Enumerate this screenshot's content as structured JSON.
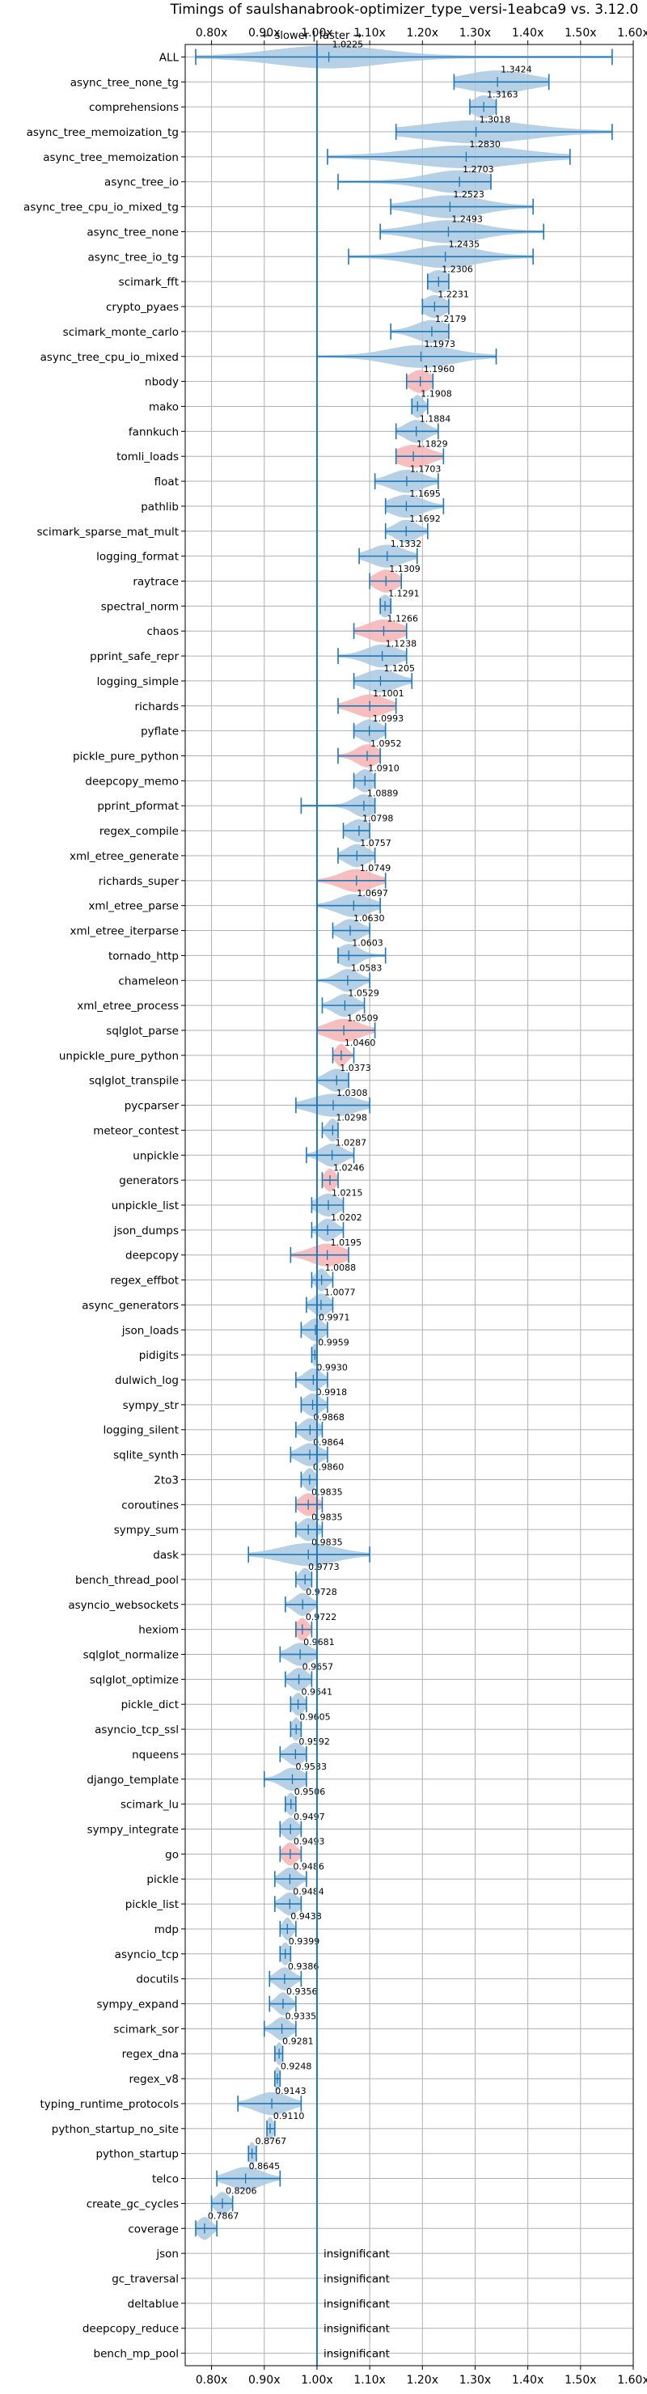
{
  "chart_data": {
    "type": "violin",
    "title": "Timings of saulshanabrook-optimizer_type_versi-1eabca9 vs. 3.12.0",
    "subtitle": "← slower | faster →",
    "xlim": [
      0.75,
      1.6
    ],
    "xticks": [
      "0.80x",
      "0.90x",
      "1.00x",
      "1.10x",
      "1.20x",
      "1.30x",
      "1.40x",
      "1.50x",
      "1.60x"
    ],
    "grid": true,
    "insignificant_label": "insignificant",
    "colors": {
      "faster": "#a9c8e2",
      "slower": "#f6b3b5",
      "line": "#1f77b4",
      "ref": "#1f77b4"
    },
    "benchmarks": [
      {
        "name": "ALL",
        "value": 1.0225,
        "min": 0.77,
        "max": 1.56,
        "spread": 0.1,
        "color": "blue"
      },
      {
        "name": "async_tree_none_tg",
        "value": 1.3424,
        "min": 1.26,
        "max": 1.44,
        "spread": 0.06,
        "color": "blue"
      },
      {
        "name": "comprehensions",
        "value": 1.3163,
        "min": 1.29,
        "max": 1.34,
        "spread": 0.02,
        "color": "blue"
      },
      {
        "name": "async_tree_memoization_tg",
        "value": 1.3018,
        "min": 1.15,
        "max": 1.56,
        "spread": 0.1,
        "color": "blue"
      },
      {
        "name": "async_tree_memoization",
        "value": 1.283,
        "min": 1.02,
        "max": 1.48,
        "spread": 0.1,
        "color": "blue"
      },
      {
        "name": "async_tree_io",
        "value": 1.2703,
        "min": 1.04,
        "max": 1.33,
        "spread": 0.06,
        "color": "blue"
      },
      {
        "name": "async_tree_cpu_io_mixed_tg",
        "value": 1.2523,
        "min": 1.14,
        "max": 1.41,
        "spread": 0.06,
        "color": "blue"
      },
      {
        "name": "async_tree_none",
        "value": 1.2493,
        "min": 1.12,
        "max": 1.43,
        "spread": 0.06,
        "color": "blue"
      },
      {
        "name": "async_tree_io_tg",
        "value": 1.2435,
        "min": 1.06,
        "max": 1.41,
        "spread": 0.06,
        "color": "blue"
      },
      {
        "name": "scimark_fft",
        "value": 1.2306,
        "min": 1.21,
        "max": 1.25,
        "spread": 0.02,
        "color": "blue"
      },
      {
        "name": "crypto_pyaes",
        "value": 1.2231,
        "min": 1.2,
        "max": 1.25,
        "spread": 0.02,
        "color": "blue"
      },
      {
        "name": "scimark_monte_carlo",
        "value": 1.2179,
        "min": 1.14,
        "max": 1.25,
        "spread": 0.03,
        "color": "blue"
      },
      {
        "name": "async_tree_cpu_io_mixed",
        "value": 1.1973,
        "min": 1.0,
        "max": 1.34,
        "spread": 0.06,
        "color": "blue"
      },
      {
        "name": "nbody",
        "value": 1.196,
        "min": 1.17,
        "max": 1.22,
        "spread": 0.02,
        "color": "pink"
      },
      {
        "name": "mako",
        "value": 1.1908,
        "min": 1.18,
        "max": 1.21,
        "spread": 0.01,
        "color": "blue"
      },
      {
        "name": "fannkuch",
        "value": 1.1884,
        "min": 1.15,
        "max": 1.23,
        "spread": 0.02,
        "color": "blue"
      },
      {
        "name": "tomli_loads",
        "value": 1.1829,
        "min": 1.15,
        "max": 1.24,
        "spread": 0.03,
        "color": "pink"
      },
      {
        "name": "float",
        "value": 1.1703,
        "min": 1.11,
        "max": 1.23,
        "spread": 0.03,
        "color": "blue"
      },
      {
        "name": "pathlib",
        "value": 1.1695,
        "min": 1.13,
        "max": 1.24,
        "spread": 0.03,
        "color": "blue"
      },
      {
        "name": "scimark_sparse_mat_mult",
        "value": 1.1692,
        "min": 1.13,
        "max": 1.21,
        "spread": 0.02,
        "color": "blue"
      },
      {
        "name": "logging_format",
        "value": 1.1332,
        "min": 1.08,
        "max": 1.19,
        "spread": 0.03,
        "color": "blue"
      },
      {
        "name": "raytrace",
        "value": 1.1309,
        "min": 1.1,
        "max": 1.16,
        "spread": 0.02,
        "color": "pink"
      },
      {
        "name": "spectral_norm",
        "value": 1.1291,
        "min": 1.12,
        "max": 1.14,
        "spread": 0.01,
        "color": "blue"
      },
      {
        "name": "chaos",
        "value": 1.1266,
        "min": 1.07,
        "max": 1.17,
        "spread": 0.03,
        "color": "pink"
      },
      {
        "name": "pprint_safe_repr",
        "value": 1.1238,
        "min": 1.04,
        "max": 1.17,
        "spread": 0.03,
        "color": "blue"
      },
      {
        "name": "logging_simple",
        "value": 1.1205,
        "min": 1.07,
        "max": 1.18,
        "spread": 0.03,
        "color": "blue"
      },
      {
        "name": "richards",
        "value": 1.1001,
        "min": 1.04,
        "max": 1.15,
        "spread": 0.03,
        "color": "pink"
      },
      {
        "name": "pyflate",
        "value": 1.0993,
        "min": 1.07,
        "max": 1.13,
        "spread": 0.02,
        "color": "blue"
      },
      {
        "name": "pickle_pure_python",
        "value": 1.0952,
        "min": 1.04,
        "max": 1.12,
        "spread": 0.02,
        "color": "pink"
      },
      {
        "name": "deepcopy_memo",
        "value": 1.091,
        "min": 1.07,
        "max": 1.11,
        "spread": 0.015,
        "color": "blue"
      },
      {
        "name": "pprint_pformat",
        "value": 1.0889,
        "min": 0.97,
        "max": 1.11,
        "spread": 0.02,
        "color": "blue"
      },
      {
        "name": "regex_compile",
        "value": 1.0798,
        "min": 1.05,
        "max": 1.1,
        "spread": 0.02,
        "color": "blue"
      },
      {
        "name": "xml_etree_generate",
        "value": 1.0757,
        "min": 1.04,
        "max": 1.11,
        "spread": 0.02,
        "color": "blue"
      },
      {
        "name": "richards_super",
        "value": 1.0749,
        "min": 1.0,
        "max": 1.13,
        "spread": 0.03,
        "color": "pink"
      },
      {
        "name": "xml_etree_parse",
        "value": 1.0697,
        "min": 1.0,
        "max": 1.12,
        "spread": 0.03,
        "color": "blue"
      },
      {
        "name": "xml_etree_iterparse",
        "value": 1.063,
        "min": 1.03,
        "max": 1.1,
        "spread": 0.02,
        "color": "blue"
      },
      {
        "name": "tornado_http",
        "value": 1.0603,
        "min": 1.04,
        "max": 1.13,
        "spread": 0.02,
        "color": "blue"
      },
      {
        "name": "chameleon",
        "value": 1.0583,
        "min": 1.0,
        "max": 1.1,
        "spread": 0.02,
        "color": "blue"
      },
      {
        "name": "xml_etree_process",
        "value": 1.0529,
        "min": 1.01,
        "max": 1.09,
        "spread": 0.02,
        "color": "blue"
      },
      {
        "name": "sqlglot_parse",
        "value": 1.0509,
        "min": 1.0,
        "max": 1.11,
        "spread": 0.03,
        "color": "pink"
      },
      {
        "name": "unpickle_pure_python",
        "value": 1.046,
        "min": 1.03,
        "max": 1.07,
        "spread": 0.01,
        "color": "pink"
      },
      {
        "name": "sqlglot_transpile",
        "value": 1.0373,
        "min": 1.0,
        "max": 1.06,
        "spread": 0.02,
        "color": "blue"
      },
      {
        "name": "pycparser",
        "value": 1.0308,
        "min": 0.96,
        "max": 1.1,
        "spread": 0.04,
        "color": "blue"
      },
      {
        "name": "meteor_contest",
        "value": 1.0298,
        "min": 1.01,
        "max": 1.04,
        "spread": 0.01,
        "color": "blue"
      },
      {
        "name": "unpickle",
        "value": 1.0287,
        "min": 0.98,
        "max": 1.07,
        "spread": 0.02,
        "color": "blue"
      },
      {
        "name": "generators",
        "value": 1.0246,
        "min": 1.01,
        "max": 1.04,
        "spread": 0.01,
        "color": "pink"
      },
      {
        "name": "unpickle_list",
        "value": 1.0215,
        "min": 0.99,
        "max": 1.05,
        "spread": 0.02,
        "color": "blue"
      },
      {
        "name": "json_dumps",
        "value": 1.0202,
        "min": 0.99,
        "max": 1.05,
        "spread": 0.015,
        "color": "blue"
      },
      {
        "name": "deepcopy",
        "value": 1.0195,
        "min": 0.95,
        "max": 1.06,
        "spread": 0.03,
        "color": "pink"
      },
      {
        "name": "regex_effbot",
        "value": 1.0088,
        "min": 0.99,
        "max": 1.03,
        "spread": 0.01,
        "color": "blue"
      },
      {
        "name": "async_generators",
        "value": 1.0077,
        "min": 0.98,
        "max": 1.03,
        "spread": 0.015,
        "color": "blue"
      },
      {
        "name": "json_loads",
        "value": 0.9971,
        "min": 0.97,
        "max": 1.02,
        "spread": 0.015,
        "color": "blue"
      },
      {
        "name": "pidigits",
        "value": 0.9959,
        "min": 0.99,
        "max": 1.0,
        "spread": 0.005,
        "color": "blue"
      },
      {
        "name": "dulwich_log",
        "value": 0.993,
        "min": 0.96,
        "max": 1.02,
        "spread": 0.015,
        "color": "blue"
      },
      {
        "name": "sympy_str",
        "value": 0.9918,
        "min": 0.97,
        "max": 1.02,
        "spread": 0.015,
        "color": "blue"
      },
      {
        "name": "logging_silent",
        "value": 0.9868,
        "min": 0.96,
        "max": 1.01,
        "spread": 0.015,
        "color": "blue"
      },
      {
        "name": "sqlite_synth",
        "value": 0.9864,
        "min": 0.95,
        "max": 1.02,
        "spread": 0.02,
        "color": "blue"
      },
      {
        "name": "2to3",
        "value": 0.986,
        "min": 0.97,
        "max": 1.0,
        "spread": 0.01,
        "color": "blue"
      },
      {
        "name": "coroutines",
        "value": 0.9835,
        "min": 0.96,
        "max": 1.01,
        "spread": 0.015,
        "color": "pink"
      },
      {
        "name": "sympy_sum",
        "value": 0.9835,
        "min": 0.96,
        "max": 1.01,
        "spread": 0.015,
        "color": "blue"
      },
      {
        "name": "dask",
        "value": 0.9835,
        "min": 0.87,
        "max": 1.1,
        "spread": 0.05,
        "color": "blue"
      },
      {
        "name": "bench_thread_pool",
        "value": 0.9773,
        "min": 0.96,
        "max": 0.99,
        "spread": 0.01,
        "color": "blue"
      },
      {
        "name": "asyncio_websockets",
        "value": 0.9728,
        "min": 0.94,
        "max": 1.0,
        "spread": 0.015,
        "color": "blue"
      },
      {
        "name": "hexiom",
        "value": 0.9722,
        "min": 0.96,
        "max": 0.99,
        "spread": 0.01,
        "color": "pink"
      },
      {
        "name": "sqlglot_normalize",
        "value": 0.9681,
        "min": 0.93,
        "max": 1.0,
        "spread": 0.02,
        "color": "blue"
      },
      {
        "name": "sqlglot_optimize",
        "value": 0.9657,
        "min": 0.94,
        "max": 0.99,
        "spread": 0.015,
        "color": "blue"
      },
      {
        "name": "pickle_dict",
        "value": 0.9641,
        "min": 0.95,
        "max": 0.98,
        "spread": 0.01,
        "color": "blue"
      },
      {
        "name": "asyncio_tcp_ssl",
        "value": 0.9605,
        "min": 0.95,
        "max": 0.97,
        "spread": 0.008,
        "color": "blue"
      },
      {
        "name": "nqueens",
        "value": 0.9592,
        "min": 0.93,
        "max": 0.98,
        "spread": 0.015,
        "color": "blue"
      },
      {
        "name": "django_template",
        "value": 0.9533,
        "min": 0.9,
        "max": 0.98,
        "spread": 0.02,
        "color": "blue"
      },
      {
        "name": "scimark_lu",
        "value": 0.9506,
        "min": 0.94,
        "max": 0.96,
        "spread": 0.008,
        "color": "blue"
      },
      {
        "name": "sympy_integrate",
        "value": 0.9497,
        "min": 0.93,
        "max": 0.97,
        "spread": 0.012,
        "color": "blue"
      },
      {
        "name": "go",
        "value": 0.9493,
        "min": 0.93,
        "max": 0.97,
        "spread": 0.012,
        "color": "pink"
      },
      {
        "name": "pickle",
        "value": 0.9486,
        "min": 0.92,
        "max": 0.98,
        "spread": 0.015,
        "color": "blue"
      },
      {
        "name": "pickle_list",
        "value": 0.9484,
        "min": 0.92,
        "max": 0.97,
        "spread": 0.015,
        "color": "blue"
      },
      {
        "name": "mdp",
        "value": 0.9438,
        "min": 0.93,
        "max": 0.96,
        "spread": 0.008,
        "color": "blue"
      },
      {
        "name": "asyncio_tcp",
        "value": 0.9399,
        "min": 0.93,
        "max": 0.95,
        "spread": 0.008,
        "color": "blue"
      },
      {
        "name": "docutils",
        "value": 0.9386,
        "min": 0.91,
        "max": 0.97,
        "spread": 0.015,
        "color": "blue"
      },
      {
        "name": "sympy_expand",
        "value": 0.9356,
        "min": 0.91,
        "max": 0.96,
        "spread": 0.012,
        "color": "blue"
      },
      {
        "name": "scimark_sor",
        "value": 0.9335,
        "min": 0.9,
        "max": 0.96,
        "spread": 0.015,
        "color": "blue"
      },
      {
        "name": "regex_dna",
        "value": 0.9281,
        "min": 0.92,
        "max": 0.935,
        "spread": 0.006,
        "color": "blue"
      },
      {
        "name": "regex_v8",
        "value": 0.9248,
        "min": 0.92,
        "max": 0.93,
        "spread": 0.006,
        "color": "blue"
      },
      {
        "name": "typing_runtime_protocols",
        "value": 0.9143,
        "min": 0.85,
        "max": 0.97,
        "spread": 0.03,
        "color": "blue"
      },
      {
        "name": "python_startup_no_site",
        "value": 0.911,
        "min": 0.905,
        "max": 0.92,
        "spread": 0.006,
        "color": "blue"
      },
      {
        "name": "python_startup",
        "value": 0.8767,
        "min": 0.87,
        "max": 0.885,
        "spread": 0.006,
        "color": "blue"
      },
      {
        "name": "telco",
        "value": 0.8645,
        "min": 0.81,
        "max": 0.93,
        "spread": 0.03,
        "color": "blue"
      },
      {
        "name": "create_gc_cycles",
        "value": 0.8206,
        "min": 0.8,
        "max": 0.84,
        "spread": 0.012,
        "color": "blue"
      },
      {
        "name": "coverage",
        "value": 0.7867,
        "min": 0.77,
        "max": 0.81,
        "spread": 0.012,
        "color": "blue"
      },
      {
        "name": "json",
        "value": null
      },
      {
        "name": "gc_traversal",
        "value": null
      },
      {
        "name": "deltablue",
        "value": null
      },
      {
        "name": "deepcopy_reduce",
        "value": null
      },
      {
        "name": "bench_mp_pool",
        "value": null
      }
    ]
  }
}
